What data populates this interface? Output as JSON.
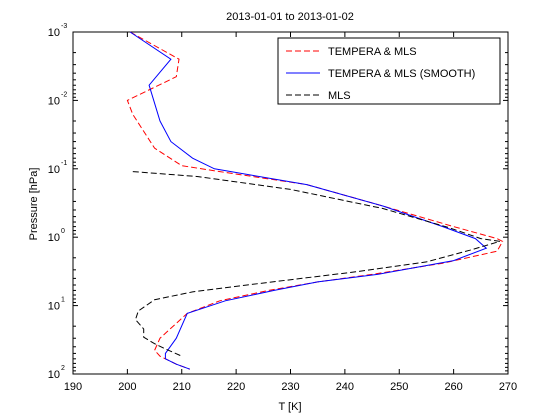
{
  "chart_data": {
    "type": "line",
    "title": "2013-01-01 to 2013-01-02",
    "xlabel": "T [K]",
    "ylabel": "Pressure [hPa]",
    "xlim": [
      190,
      270
    ],
    "ylim": [
      0.001,
      100
    ],
    "y_scale": "log",
    "y_reversed": true,
    "grid": false,
    "legend_position": "top-right",
    "x_ticks": [
      "190",
      "200",
      "210",
      "220",
      "230",
      "240",
      "250",
      "260",
      "270"
    ],
    "y_ticks": [
      {
        "base": "10",
        "exp": "-3"
      },
      {
        "base": "10",
        "exp": "-2"
      },
      {
        "base": "10",
        "exp": "-1"
      },
      {
        "base": "10",
        "exp": "0"
      },
      {
        "base": "10",
        "exp": "1"
      },
      {
        "base": "10",
        "exp": "2"
      }
    ],
    "series": [
      {
        "name": "TEMPERA & MLS",
        "color": "#ff0000",
        "dash": "dashed",
        "points": [
          [
            200.5,
            0.001
          ],
          [
            209.5,
            0.0025
          ],
          [
            209,
            0.0045
          ],
          [
            200,
            0.01
          ],
          [
            201,
            0.016
          ],
          [
            205,
            0.05
          ],
          [
            210,
            0.09
          ],
          [
            217,
            0.11
          ],
          [
            233,
            0.17
          ],
          [
            247,
            0.35
          ],
          [
            260,
            0.7
          ],
          [
            268,
            1.05
          ],
          [
            269,
            1.15
          ],
          [
            268,
            1.6
          ],
          [
            258,
            2.4
          ],
          [
            245,
            3.5
          ],
          [
            235,
            4.5
          ],
          [
            226,
            6.0
          ],
          [
            217,
            8.5
          ],
          [
            211,
            13
          ],
          [
            206,
            30
          ],
          [
            205,
            45
          ],
          [
            206,
            55
          ],
          [
            207,
            60
          ],
          [
            209,
            72
          ],
          [
            211.5,
            85
          ]
        ]
      },
      {
        "name": "TEMPERA & MLS (SMOOTH)",
        "color": "#0000ff",
        "dash": "solid",
        "points": [
          [
            200.5,
            0.001
          ],
          [
            208,
            0.0025
          ],
          [
            204,
            0.006
          ],
          [
            206,
            0.02
          ],
          [
            208,
            0.04
          ],
          [
            212,
            0.07
          ],
          [
            216,
            0.1
          ],
          [
            233,
            0.17
          ],
          [
            247,
            0.35
          ],
          [
            258,
            0.7
          ],
          [
            264,
            1.05
          ],
          [
            266,
            1.45
          ],
          [
            260,
            2.2
          ],
          [
            246,
            3.5
          ],
          [
            235,
            4.5
          ],
          [
            227,
            6.0
          ],
          [
            218,
            8.5
          ],
          [
            211,
            13
          ],
          [
            209,
            30
          ],
          [
            207,
            50
          ],
          [
            207,
            60
          ],
          [
            209,
            72
          ],
          [
            211.5,
            85
          ]
        ]
      },
      {
        "name": "MLS",
        "color": "#000000",
        "dash": "dashed",
        "points": [
          [
            201,
            0.11
          ],
          [
            213,
            0.13
          ],
          [
            230,
            0.2
          ],
          [
            247,
            0.38
          ],
          [
            259,
            0.72
          ],
          [
            265,
            1.05
          ],
          [
            268.5,
            1.15
          ],
          [
            263,
            1.55
          ],
          [
            255,
            2.3
          ],
          [
            242,
            3.2
          ],
          [
            232,
            4.0
          ],
          [
            222,
            5.0
          ],
          [
            212,
            6.3
          ],
          [
            205,
            8.2
          ],
          [
            202,
            12
          ],
          [
            201.5,
            16
          ],
          [
            203,
            22
          ],
          [
            203,
            29
          ],
          [
            205,
            36
          ],
          [
            207,
            43
          ],
          [
            210,
            55
          ]
        ]
      }
    ]
  }
}
